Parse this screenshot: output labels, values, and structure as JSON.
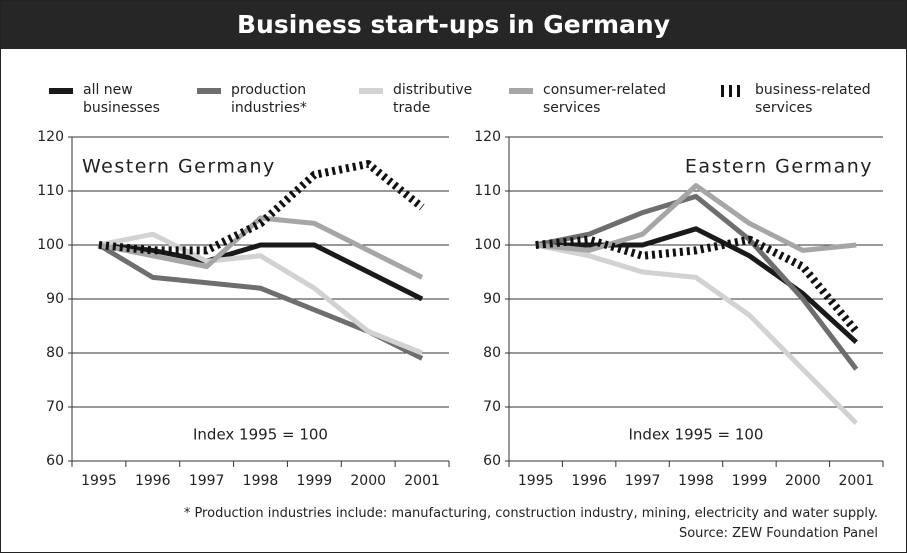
{
  "title": "Business start-ups in Germany",
  "footnote": "* Production industries include: manufacturing, construction industry, mining, electricity and water supply.",
  "source": "Source: ZEW Foundation Panel",
  "chart_data": [
    {
      "type": "line",
      "title": "Western Germany",
      "title_corner": "left",
      "annotation": "Index 1995 = 100",
      "categories": [
        "1995",
        "1996",
        "1997",
        "1998",
        "1999",
        "2000",
        "2001"
      ],
      "ylim": [
        60,
        120
      ],
      "yticks": [
        60,
        70,
        80,
        90,
        100,
        110,
        120
      ],
      "grid": true,
      "series": [
        {
          "name": "all new businesses",
          "color": "#1a1a1a",
          "values": [
            100,
            99,
            97,
            100,
            100,
            95,
            90
          ]
        },
        {
          "name": "production industries*",
          "color": "#6e6e6e",
          "values": [
            100,
            94,
            93,
            92,
            88,
            84,
            79
          ]
        },
        {
          "name": "distributive trade",
          "color": "#d2d2d2",
          "values": [
            100,
            102,
            97,
            98,
            92,
            84,
            80
          ]
        },
        {
          "name": "consumer-related services",
          "color": "#a6a6a6",
          "values": [
            100,
            98,
            96,
            105,
            104,
            99,
            94
          ]
        },
        {
          "name": "business-related services",
          "color": "#111111",
          "line_style": "dotted",
          "values": [
            100,
            99,
            99,
            104,
            113,
            115,
            107
          ]
        }
      ]
    },
    {
      "type": "line",
      "title": "Eastern Germany",
      "title_corner": "right",
      "annotation": "Index 1995 = 100",
      "categories": [
        "1995",
        "1996",
        "1997",
        "1998",
        "1999",
        "2000",
        "2001"
      ],
      "ylim": [
        60,
        120
      ],
      "yticks": [
        60,
        70,
        80,
        90,
        100,
        110,
        120
      ],
      "grid": true,
      "series": [
        {
          "name": "all new businesses",
          "color": "#1a1a1a",
          "values": [
            100,
            100,
            100,
            103,
            98,
            91,
            82
          ]
        },
        {
          "name": "production industries*",
          "color": "#6e6e6e",
          "values": [
            100,
            102,
            106,
            109,
            101,
            90,
            77
          ]
        },
        {
          "name": "distributive trade",
          "color": "#d2d2d2",
          "values": [
            100,
            98,
            95,
            94,
            87,
            77,
            67
          ]
        },
        {
          "name": "consumer-related services",
          "color": "#a6a6a6",
          "values": [
            100,
            99,
            102,
            111,
            104,
            99,
            100
          ]
        },
        {
          "name": "business-related services",
          "color": "#111111",
          "line_style": "dotted",
          "values": [
            100,
            101,
            98,
            99,
            101,
            96,
            84
          ]
        }
      ]
    }
  ]
}
